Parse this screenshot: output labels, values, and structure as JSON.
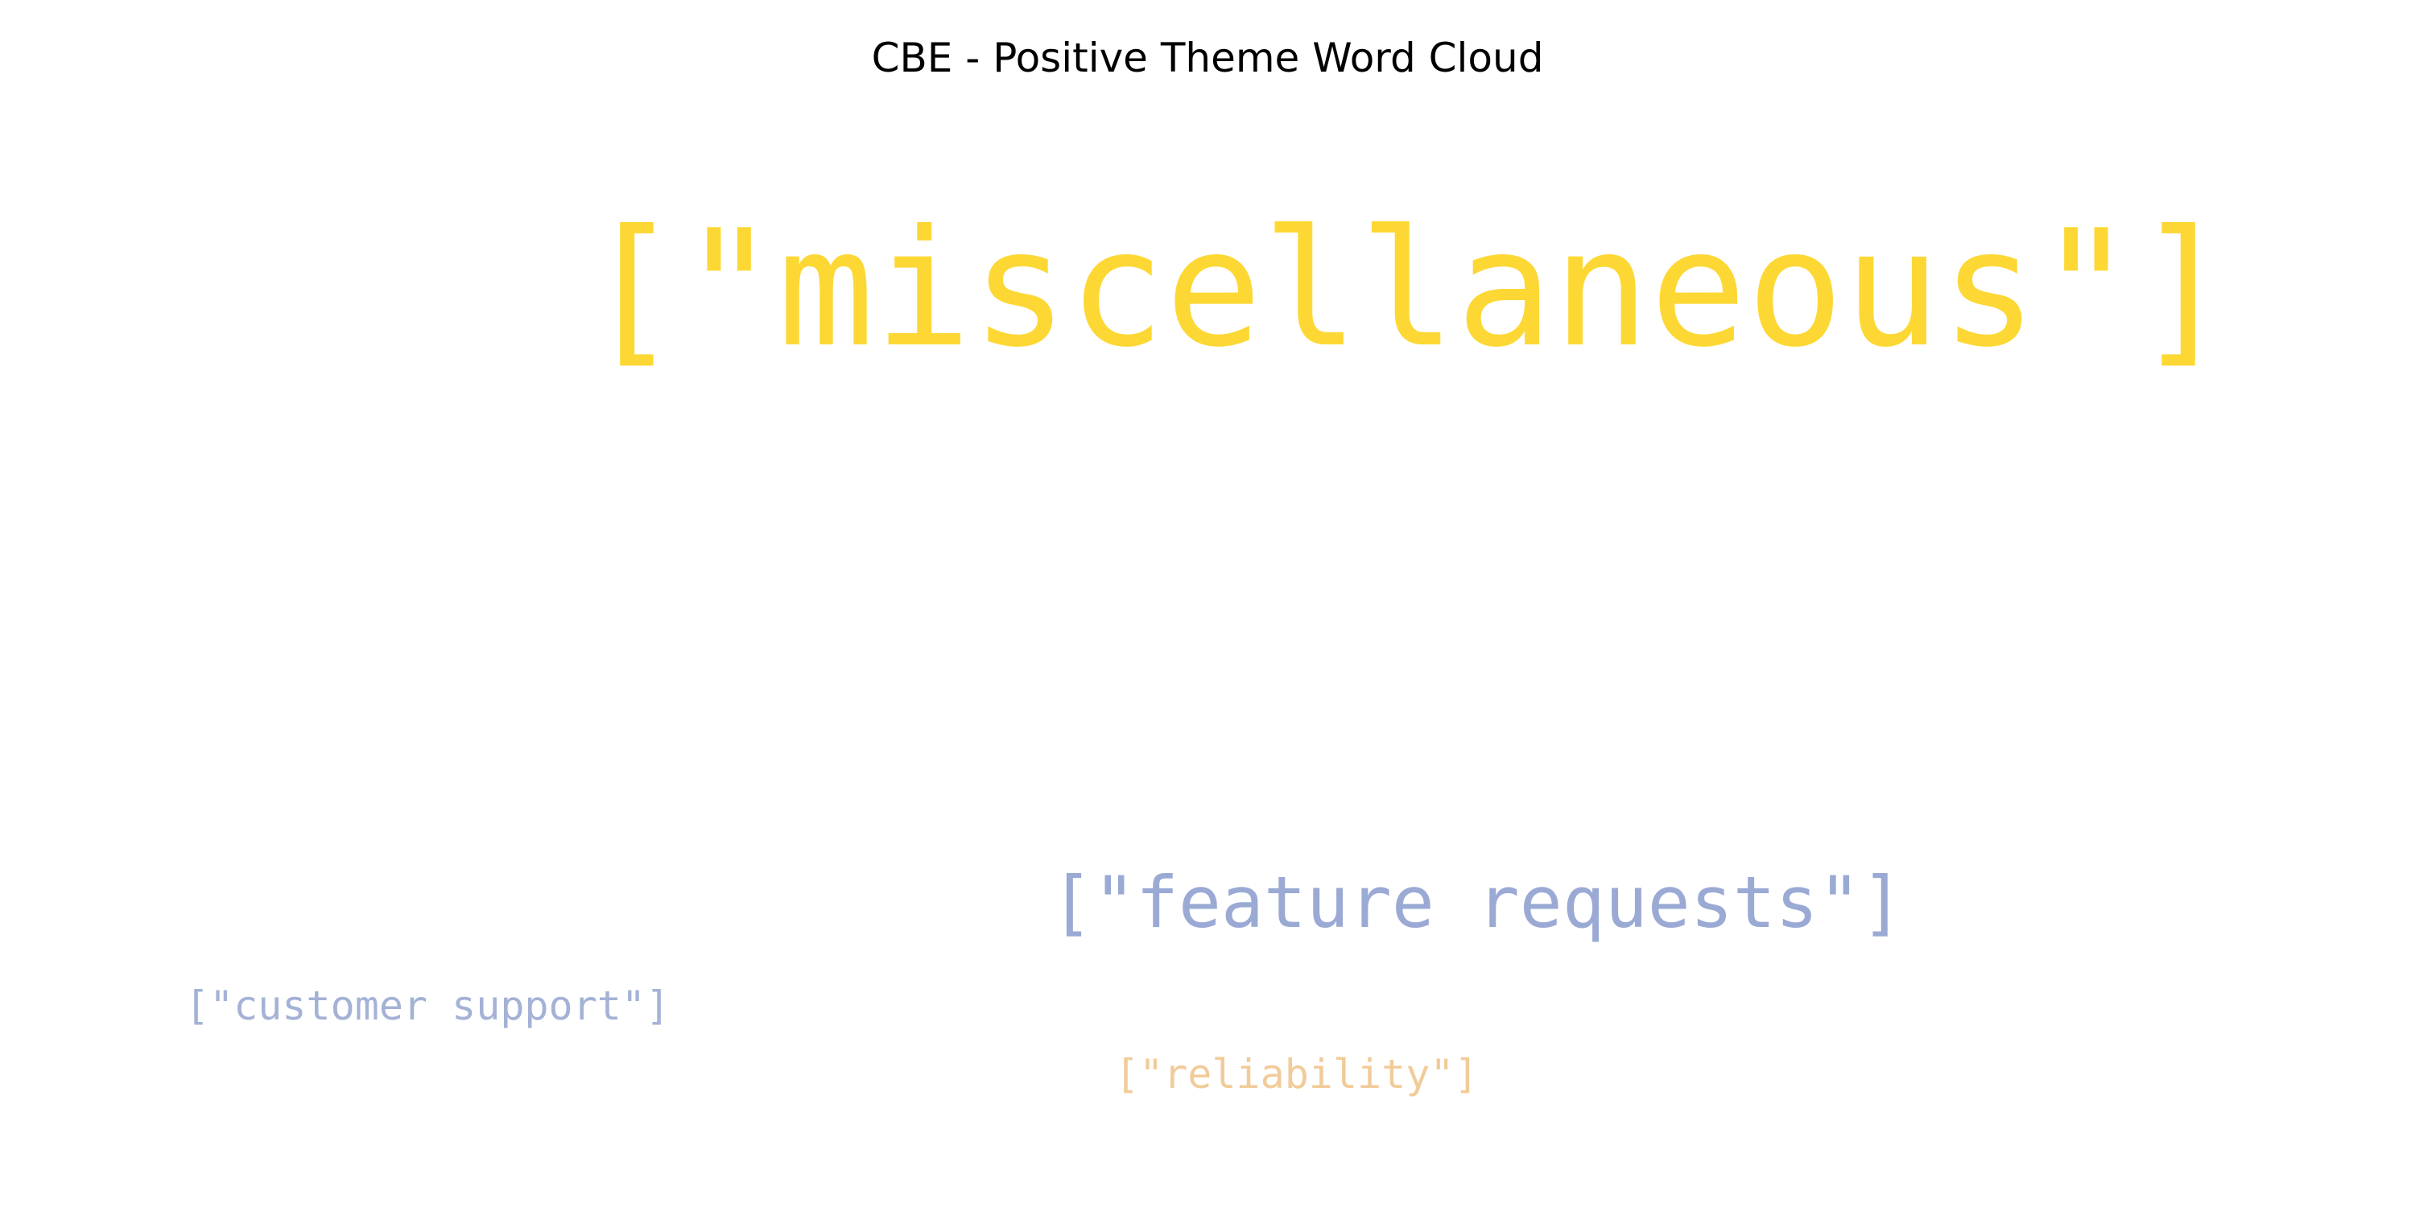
{
  "chart_data": {
    "type": "wordcloud",
    "title": "CBE - Positive Theme Word Cloud",
    "words": [
      {
        "text": "[\"miscellaneous\"]",
        "color": "#fdd835",
        "weight": 1.0
      },
      {
        "text": "[\"feature requests\"]",
        "color": "#9aaad4",
        "weight": 0.42
      },
      {
        "text": "[\"customer support\"]",
        "color": "#a4b2d6",
        "weight": 0.25
      },
      {
        "text": "[\"reliability\"]",
        "color": "#f1cc9a",
        "weight": 0.25
      }
    ]
  }
}
